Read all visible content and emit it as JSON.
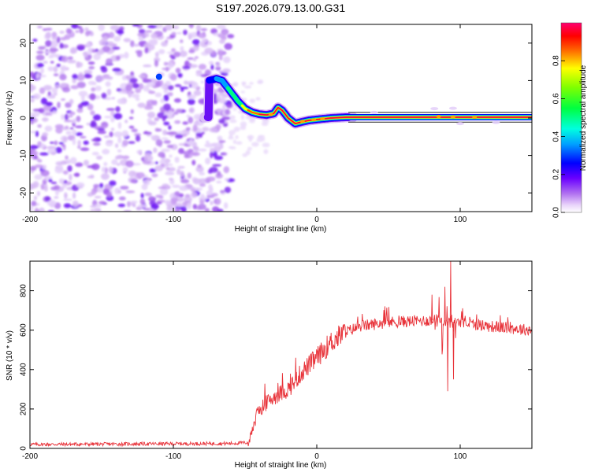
{
  "title": "S197.2026.079.13.00.G31",
  "chart_data": [
    {
      "type": "heatmap",
      "name": "spectrogram",
      "xlabel": "Height of straight line (km)",
      "ylabel": "Frequency (Hz)",
      "xlim": [
        -200,
        150
      ],
      "ylim": [
        -25,
        25
      ],
      "xticks": [
        -200,
        -100,
        0,
        100
      ],
      "yticks": [
        -20,
        -10,
        0,
        10,
        20
      ],
      "ridge": [
        [
          -75,
          10
        ],
        [
          -70,
          10.5
        ],
        [
          -66,
          10
        ],
        [
          -62,
          8
        ],
        [
          -58,
          6
        ],
        [
          -55,
          4.5
        ],
        [
          -50,
          2.5
        ],
        [
          -45,
          1.5
        ],
        [
          -40,
          1
        ],
        [
          -35,
          0.8
        ],
        [
          -30,
          1.2
        ],
        [
          -27,
          2.8
        ],
        [
          -24,
          2
        ],
        [
          -20,
          0
        ],
        [
          -15,
          -1.5
        ],
        [
          -10,
          -1
        ],
        [
          -5,
          -0.6
        ],
        [
          0,
          -0.4
        ],
        [
          10,
          0
        ],
        [
          20,
          0.2
        ],
        [
          150,
          0.2
        ]
      ],
      "noise_region": [
        -200,
        -60
      ],
      "colorbar": {
        "label": "Normalized spectral amplitude",
        "range": [
          0,
          1
        ],
        "ticks": [
          "0.0",
          "0.2",
          "0.4",
          "0.6",
          "0.8"
        ],
        "colors": [
          "#ffffff",
          "#e0c8f8",
          "#a050f0",
          "#6000ff",
          "#0000ff",
          "#00c8ff",
          "#00ff80",
          "#40ff00",
          "#ffff00",
          "#ff8000",
          "#ff0000",
          "#ff0080"
        ]
      }
    },
    {
      "type": "line",
      "name": "snr",
      "xlabel": "Height of straight line (km)",
      "ylabel": "SNR (10 * v/v)",
      "xlim": [
        -200,
        150
      ],
      "ylim": [
        0,
        950
      ],
      "xticks": [
        -200,
        -100,
        0,
        100
      ],
      "yticks": [
        0,
        200,
        400,
        600,
        800
      ],
      "color": "#e8333a",
      "trend": [
        [
          -200,
          20
        ],
        [
          -60,
          25
        ],
        [
          -48,
          30
        ],
        [
          -45,
          100
        ],
        [
          -40,
          200
        ],
        [
          -30,
          260
        ],
        [
          -20,
          300
        ],
        [
          -10,
          390
        ],
        [
          0,
          460
        ],
        [
          10,
          540
        ],
        [
          20,
          590
        ],
        [
          30,
          620
        ],
        [
          50,
          640
        ],
        [
          80,
          650
        ],
        [
          100,
          640
        ],
        [
          120,
          620
        ],
        [
          150,
          600
        ]
      ],
      "spikes": [
        {
          "x": 93,
          "y": 950
        },
        {
          "x": 91,
          "y": 290
        },
        {
          "x": 95,
          "y": 350
        },
        {
          "x": 89,
          "y": 820
        },
        {
          "x": -15,
          "y": 460
        },
        {
          "x": -5,
          "y": 420
        },
        {
          "x": 80,
          "y": 780
        }
      ]
    }
  ]
}
